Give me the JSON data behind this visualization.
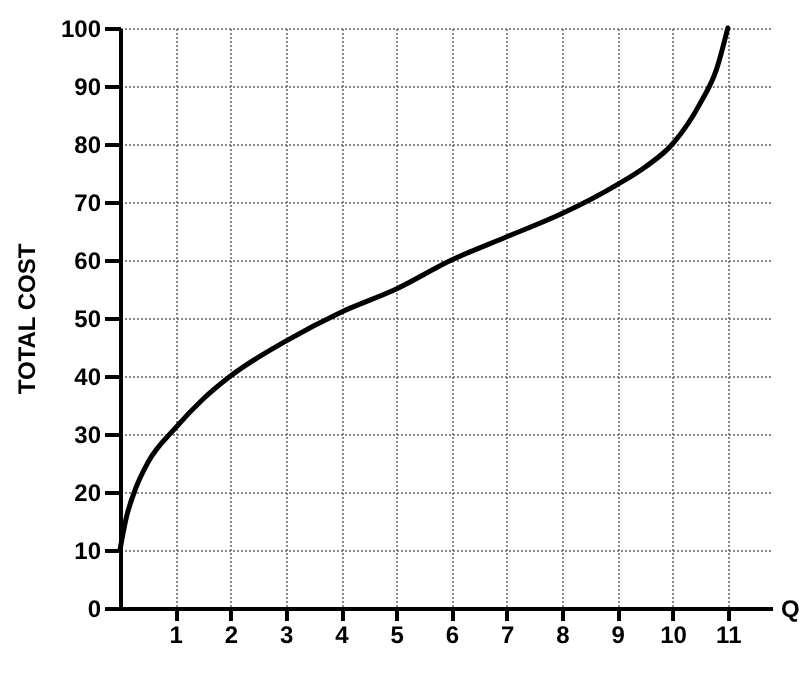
{
  "chart_data": {
    "type": "line",
    "ylabel": "TOTAL COST",
    "xlabel": "Q",
    "x": [
      0,
      0.1,
      0.3,
      0.5,
      1,
      1.5,
      2,
      3,
      4,
      5,
      6,
      7,
      8,
      9,
      9.5,
      10,
      10.5,
      10.8,
      11
    ],
    "series": [
      {
        "color": "#000000",
        "values": [
          10,
          15,
          21,
          25,
          31,
          36,
          40,
          46,
          51,
          55,
          60,
          64,
          68,
          73,
          76,
          80,
          87,
          93,
          100
        ]
      }
    ],
    "xlim": [
      0,
      11.8
    ],
    "xticks": [
      1,
      2,
      3,
      4,
      5,
      6,
      7,
      8,
      9,
      10,
      11
    ],
    "ylim": [
      0,
      100
    ],
    "yticks": [
      0,
      10,
      20,
      30,
      40,
      50,
      60,
      70,
      80,
      90,
      100
    ],
    "grid": true,
    "marker": "none",
    "line_style": "solid",
    "legend": false
  }
}
